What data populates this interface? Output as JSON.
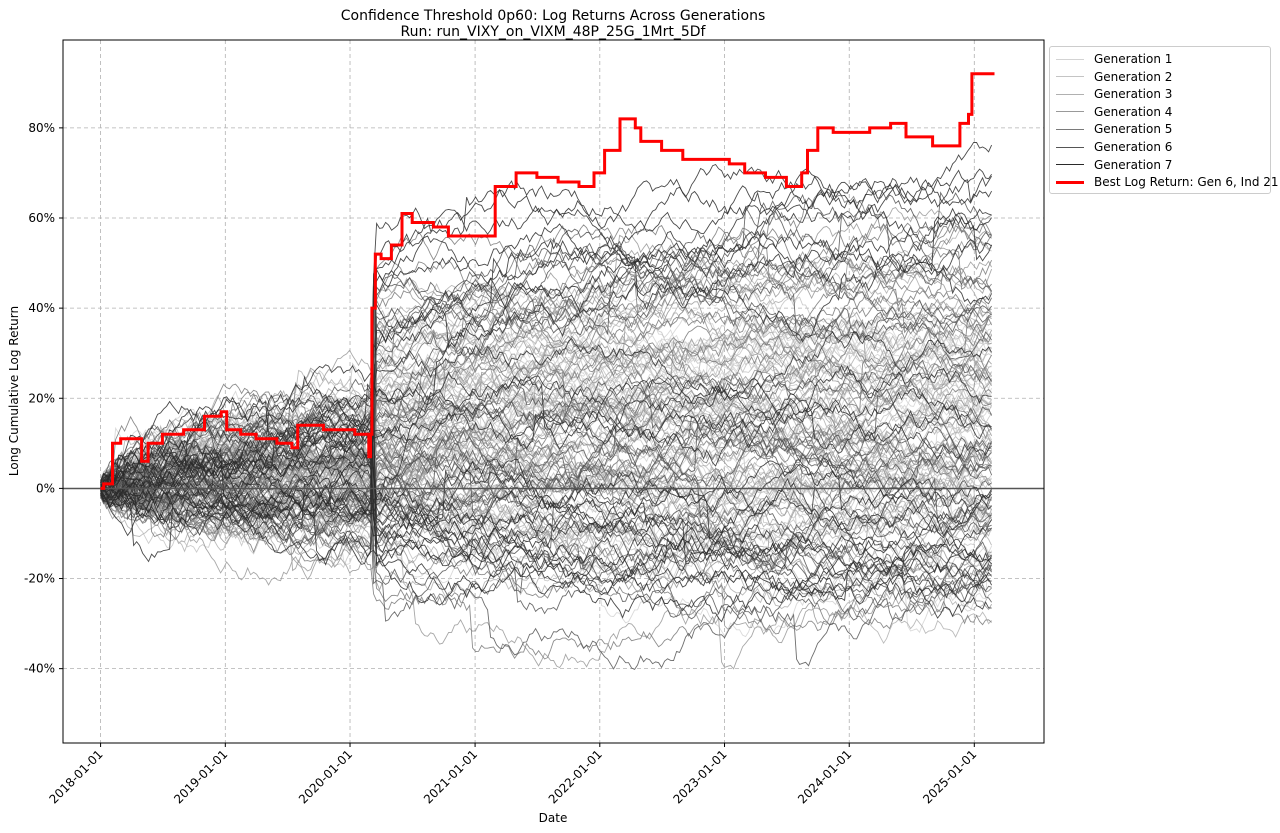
{
  "chart_data": {
    "type": "line",
    "title": "Confidence Threshold 0p60: Log Returns Across Generations",
    "subtitle": "Run: run_VIXY_on_VIXM_48P_25G_1Mrt_5Df",
    "xlabel": "Date",
    "ylabel": "Long Cumulative Log Return",
    "xlim": [
      "2017-09-13",
      "2025-07-24"
    ],
    "ylim": [
      -0.565,
      0.995
    ],
    "y_ticks": [
      -0.4,
      -0.2,
      0,
      0.2,
      0.4,
      0.6,
      0.8
    ],
    "y_tick_labels": [
      "-40%",
      "-20%",
      "0%",
      "20%",
      "40%",
      "60%",
      "80%"
    ],
    "x_ticks": [
      "2018-01-01",
      "2019-01-01",
      "2020-01-01",
      "2021-01-01",
      "2022-01-01",
      "2023-01-01",
      "2024-01-01",
      "2025-01-01"
    ],
    "grid": true,
    "legend_position": "outside-top-right",
    "series": [
      {
        "name": "Generation 1",
        "color": "#d3d3d3"
      },
      {
        "name": "Generation 2",
        "color": "#c4c4c4"
      },
      {
        "name": "Generation 3",
        "color": "#b0b0b0"
      },
      {
        "name": "Generation 4",
        "color": "#999999"
      },
      {
        "name": "Generation 5",
        "color": "#7a7a7a"
      },
      {
        "name": "Generation 6",
        "color": "#555555"
      },
      {
        "name": "Generation 7",
        "color": "#2a2a2a"
      },
      {
        "name": "Best Log Return: Gen 6, Ind 21",
        "color": "#ff0000",
        "points": [
          [
            "2018-01-01",
            0.0
          ],
          [
            "2018-01-10",
            0.01
          ],
          [
            "2018-02-05",
            0.1
          ],
          [
            "2018-03-01",
            0.11
          ],
          [
            "2018-04-10",
            0.11
          ],
          [
            "2018-05-01",
            0.06
          ],
          [
            "2018-05-20",
            0.1
          ],
          [
            "2018-07-01",
            0.12
          ],
          [
            "2018-09-01",
            0.13
          ],
          [
            "2018-11-01",
            0.16
          ],
          [
            "2018-12-20",
            0.17
          ],
          [
            "2019-01-05",
            0.13
          ],
          [
            "2019-02-15",
            0.12
          ],
          [
            "2019-04-01",
            0.11
          ],
          [
            "2019-06-01",
            0.1
          ],
          [
            "2019-07-15",
            0.09
          ],
          [
            "2019-08-01",
            0.14
          ],
          [
            "2019-09-15",
            0.14
          ],
          [
            "2019-10-15",
            0.13
          ],
          [
            "2019-12-01",
            0.13
          ],
          [
            "2020-01-15",
            0.12
          ],
          [
            "2020-02-10",
            0.12
          ],
          [
            "2020-02-25",
            0.07
          ],
          [
            "2020-03-01",
            0.12
          ],
          [
            "2020-03-05",
            0.4
          ],
          [
            "2020-03-15",
            0.52
          ],
          [
            "2020-04-01",
            0.51
          ],
          [
            "2020-05-01",
            0.54
          ],
          [
            "2020-06-01",
            0.61
          ],
          [
            "2020-07-01",
            0.59
          ],
          [
            "2020-09-01",
            0.58
          ],
          [
            "2020-10-15",
            0.56
          ],
          [
            "2021-01-15",
            0.56
          ],
          [
            "2021-03-01",
            0.67
          ],
          [
            "2021-05-01",
            0.7
          ],
          [
            "2021-07-01",
            0.69
          ],
          [
            "2021-09-01",
            0.68
          ],
          [
            "2021-11-01",
            0.67
          ],
          [
            "2021-12-15",
            0.7
          ],
          [
            "2022-01-15",
            0.75
          ],
          [
            "2022-03-01",
            0.82
          ],
          [
            "2022-04-15",
            0.8
          ],
          [
            "2022-05-01",
            0.77
          ],
          [
            "2022-07-01",
            0.75
          ],
          [
            "2022-09-01",
            0.73
          ],
          [
            "2022-11-01",
            0.73
          ],
          [
            "2023-01-15",
            0.72
          ],
          [
            "2023-03-01",
            0.7
          ],
          [
            "2023-05-01",
            0.69
          ],
          [
            "2023-07-01",
            0.67
          ],
          [
            "2023-08-15",
            0.7
          ],
          [
            "2023-09-01",
            0.75
          ],
          [
            "2023-10-01",
            0.8
          ],
          [
            "2023-11-15",
            0.79
          ],
          [
            "2024-01-01",
            0.79
          ],
          [
            "2024-03-01",
            0.8
          ],
          [
            "2024-05-01",
            0.81
          ],
          [
            "2024-06-15",
            0.78
          ],
          [
            "2024-07-15",
            0.78
          ],
          [
            "2024-09-01",
            0.76
          ],
          [
            "2024-11-01",
            0.76
          ],
          [
            "2024-11-20",
            0.81
          ],
          [
            "2024-12-15",
            0.83
          ],
          [
            "2024-12-25",
            0.92
          ],
          [
            "2025-02-01",
            0.92
          ],
          [
            "2025-03-01",
            0.92
          ]
        ]
      }
    ]
  }
}
